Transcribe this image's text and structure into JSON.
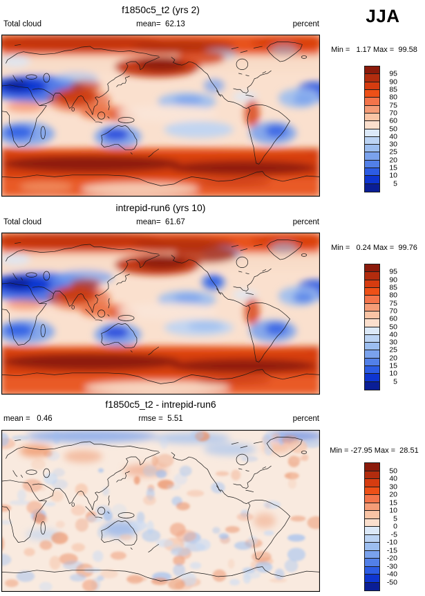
{
  "season_label": "JJA",
  "palette": [
    "#8B1A0B",
    "#B22C0E",
    "#D63C10",
    "#EE5017",
    "#F4744A",
    "#F59C77",
    "#F9C4A5",
    "#FBDFCD",
    "#DCE9F8",
    "#BCD4F4",
    "#9CBEF0",
    "#7AA2ED",
    "#5280E8",
    "#2C5CE4",
    "#0E35D0",
    "#0A1E96"
  ],
  "panels": [
    {
      "title": "f1850c5_t2 (yrs 2)",
      "info_left": "Total cloud",
      "info_center": "mean=  62.13",
      "info_right": "percent",
      "minmax": "Min =   1.17 Max =  99.58",
      "colorbar_labels": [
        "95",
        "90",
        "85",
        "80",
        "75",
        "70",
        "60",
        "50",
        "40",
        "30",
        "25",
        "20",
        "15",
        "10",
        "5"
      ]
    },
    {
      "title": "intrepid-run6 (yrs 10)",
      "info_left": "Total cloud",
      "info_center": "mean=  61.67",
      "info_right": "percent",
      "minmax": "Min =   0.24 Max =  99.76",
      "colorbar_labels": [
        "95",
        "90",
        "85",
        "80",
        "75",
        "70",
        "60",
        "50",
        "40",
        "30",
        "25",
        "20",
        "15",
        "10",
        "5"
      ]
    },
    {
      "title": "f1850c5_t2 - intrepid-run6",
      "info_left": "mean =   0.46",
      "info_center": "rmse =  5.51",
      "info_right": "percent",
      "minmax": "Min = -27.95 Max =  28.51",
      "colorbar_labels": [
        "50",
        "40",
        "30",
        "20",
        "15",
        "10",
        "5",
        "0",
        "-5",
        "-10",
        "-15",
        "-20",
        "-30",
        "-40",
        "-50"
      ]
    }
  ],
  "chart_data": [
    {
      "type": "heatmap",
      "title": "f1850c5_t2 (yrs 2)",
      "variable": "Total cloud",
      "units": "percent",
      "season": "JJA",
      "projection": "global lat-lon map",
      "stats": {
        "mean": 62.13,
        "min": 1.17,
        "max": 99.58
      },
      "contour_levels": [
        5,
        10,
        15,
        20,
        25,
        30,
        40,
        50,
        60,
        70,
        75,
        80,
        85,
        90,
        95
      ],
      "legend_position": "right",
      "colormap": "blue-white-red, blue=low cloud fraction, dark red=high cloud fraction"
    },
    {
      "type": "heatmap",
      "title": "intrepid-run6 (yrs 10)",
      "variable": "Total cloud",
      "units": "percent",
      "season": "JJA",
      "projection": "global lat-lon map",
      "stats": {
        "mean": 61.67,
        "min": 0.24,
        "max": 99.76
      },
      "contour_levels": [
        5,
        10,
        15,
        20,
        25,
        30,
        40,
        50,
        60,
        70,
        75,
        80,
        85,
        90,
        95
      ],
      "legend_position": "right",
      "colormap": "blue-white-red, blue=low cloud fraction, dark red=high cloud fraction"
    },
    {
      "type": "heatmap",
      "title": "f1850c5_t2 - intrepid-run6",
      "units": "percent",
      "season": "JJA",
      "projection": "global lat-lon map",
      "stats": {
        "mean": 0.46,
        "rmse": 5.51,
        "min": -27.95,
        "max": 28.51
      },
      "contour_levels": [
        -50,
        -40,
        -30,
        -20,
        -15,
        -10,
        -5,
        0,
        5,
        10,
        15,
        20,
        30,
        40,
        50
      ],
      "legend_position": "right",
      "colormap": "blue-white-red difference map, blue=negative, red=positive"
    }
  ]
}
